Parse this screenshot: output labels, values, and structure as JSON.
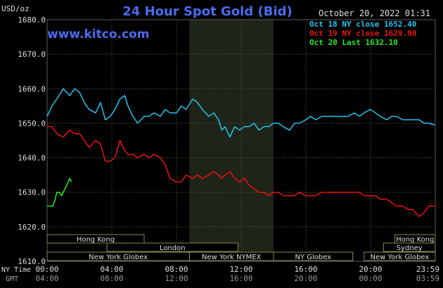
{
  "header": {
    "title": "24 Hour Spot Gold (Bid)",
    "date": "October 20, 2022 01:31",
    "website": "www.kitco.com",
    "unit": "USD/oz"
  },
  "legend": [
    {
      "label": "Oct 18 NY close 1652.40",
      "color": "#22c4ee"
    },
    {
      "label": "Oct 19 NY close 1629.90",
      "color": "#ee1111"
    },
    {
      "label": "Oct 20 Last 1632.10",
      "color": "#22ee22"
    }
  ],
  "axis": {
    "x_row_label_ny": "NY Time",
    "x_row_label_gmt": "GMT",
    "x_ticks_ny": [
      "00:00",
      "04:00",
      "08:00",
      "12:00",
      "16:00",
      "20:00",
      "23:59"
    ],
    "x_ticks_gmt": [
      "04:00",
      "08:00",
      "12:00",
      "16:00",
      "20:00",
      "00:00",
      "03:59"
    ]
  },
  "sessions": [
    {
      "label": "Hong Kong",
      "start": 0,
      "end": 6
    },
    {
      "label": "London",
      "start": 3.7,
      "end": 11.8
    },
    {
      "label": "New York Globex",
      "start": 0,
      "end": 8.8
    },
    {
      "label": "New York NYMEX",
      "start": 8.8,
      "end": 14
    },
    {
      "label": "NY Globex",
      "start": 14,
      "end": 18.9
    },
    {
      "label": "Hong Kong",
      "start": 21.5,
      "end": 24
    },
    {
      "label": "Sydney",
      "start": 20.8,
      "end": 24
    },
    {
      "label": "New York Globex",
      "start": 19.6,
      "end": 24
    }
  ],
  "colors": {
    "background": "#000000",
    "grid": "#5a5a5a",
    "nymex_band": "#1e2418",
    "session_box": "#8a8a4a",
    "session_fill": "#000000",
    "title": "#4a6cf0",
    "text": "#dddddd"
  },
  "chart_data": {
    "type": "line",
    "title": "24 Hour Spot Gold (Bid)",
    "xlabel": "NY Time",
    "ylabel": "USD/oz",
    "xlim": [
      0,
      24
    ],
    "ylim": [
      1610,
      1680
    ],
    "y_ticks": [
      1610,
      1620,
      1630,
      1640,
      1650,
      1660,
      1670,
      1680
    ],
    "y_tick_labels": [
      "1610.0",
      "1620.0",
      "1630.0",
      "1640.0",
      "1650.0",
      "1660.0",
      "1670.0",
      "1680.0"
    ],
    "grid": true,
    "series": [
      {
        "name": "Oct 18 NY close 1652.40",
        "color": "#22c4ee",
        "x": [
          0,
          0.3,
          0.6,
          1,
          1.4,
          1.7,
          2,
          2.3,
          2.6,
          3,
          3.3,
          3.6,
          3.9,
          4.2,
          4.5,
          4.8,
          5,
          5.3,
          5.6,
          6,
          6.3,
          6.6,
          7,
          7.3,
          7.6,
          8,
          8.3,
          8.6,
          9,
          9.3,
          9.6,
          10,
          10.3,
          10.6,
          10.8,
          11,
          11.3,
          11.6,
          11.9,
          12.2,
          12.5,
          12.8,
          13.1,
          13.4,
          13.7,
          14,
          14.3,
          14.6,
          15,
          15.3,
          15.6,
          16,
          16.3,
          16.6,
          17,
          17.3,
          17.6,
          18,
          18.3,
          18.6,
          19,
          19.3,
          19.6,
          20,
          20.3,
          20.6,
          21,
          21.3,
          21.6,
          22,
          22.3,
          22.6,
          23,
          23.3,
          23.6,
          23.98
        ],
        "y": [
          1652,
          1655,
          1657,
          1660,
          1658,
          1660,
          1659,
          1656,
          1654,
          1653,
          1656,
          1651,
          1652,
          1654,
          1657,
          1658,
          1655,
          1652,
          1650,
          1652,
          1652,
          1653,
          1652,
          1654,
          1653,
          1653,
          1655,
          1654,
          1657,
          1656,
          1654,
          1652,
          1653,
          1651,
          1648,
          1649,
          1646,
          1649,
          1648,
          1649,
          1649,
          1650,
          1648,
          1649,
          1649,
          1650,
          1650,
          1649,
          1648,
          1650,
          1650,
          1651,
          1652,
          1651,
          1652,
          1652,
          1652,
          1652,
          1652,
          1652,
          1653,
          1652,
          1653,
          1654,
          1653,
          1652,
          1651,
          1652,
          1652,
          1651,
          1651,
          1651,
          1651,
          1650,
          1650,
          1649.5
        ]
      },
      {
        "name": "Oct 19 NY close 1629.90",
        "color": "#ee1111",
        "x": [
          0,
          0.3,
          0.6,
          1,
          1.4,
          1.7,
          2,
          2.3,
          2.6,
          3,
          3.3,
          3.6,
          3.9,
          4.2,
          4.5,
          4.8,
          5,
          5.3,
          5.6,
          6,
          6.3,
          6.6,
          7,
          7.3,
          7.6,
          8,
          8.3,
          8.6,
          9,
          9.3,
          9.6,
          10,
          10.3,
          10.6,
          10.8,
          11,
          11.3,
          11.6,
          11.9,
          12.2,
          12.5,
          12.8,
          13.1,
          13.4,
          13.7,
          14,
          14.3,
          14.6,
          15,
          15.3,
          15.6,
          16,
          16.3,
          16.6,
          17,
          17.3,
          17.6,
          18,
          18.3,
          18.6,
          19,
          19.3,
          19.6,
          20,
          20.3,
          20.6,
          21,
          21.3,
          21.6,
          22,
          22.3,
          22.6,
          23,
          23.3,
          23.6,
          23.98
        ],
        "y": [
          1649,
          1649,
          1647,
          1646,
          1648,
          1647,
          1647,
          1645,
          1643,
          1645,
          1644,
          1639,
          1639,
          1640,
          1645,
          1642,
          1641,
          1641,
          1640,
          1641,
          1640,
          1641,
          1640,
          1638,
          1634,
          1633,
          1633,
          1635,
          1634,
          1635,
          1634,
          1635,
          1636,
          1635,
          1634,
          1635,
          1636,
          1634,
          1633,
          1634,
          1632,
          1631,
          1630,
          1630,
          1629,
          1630,
          1630,
          1629,
          1629,
          1629,
          1630,
          1629,
          1629,
          1629,
          1630,
          1630,
          1630,
          1630,
          1630,
          1630,
          1630,
          1630,
          1629,
          1629,
          1629,
          1628,
          1628,
          1627,
          1626,
          1626,
          1625,
          1625,
          1623,
          1624,
          1626,
          1626
        ]
      },
      {
        "name": "Oct 20 Last 1632.10",
        "color": "#22ee22",
        "x": [
          0,
          0.1,
          0.2,
          0.35,
          0.5,
          0.6,
          0.75,
          0.9,
          1.0,
          1.1,
          1.2,
          1.3,
          1.4,
          1.5
        ],
        "y": [
          1626,
          1626,
          1626,
          1626,
          1628,
          1630,
          1630,
          1629,
          1630,
          1631,
          1632,
          1633,
          1634,
          1633
        ]
      }
    ]
  }
}
